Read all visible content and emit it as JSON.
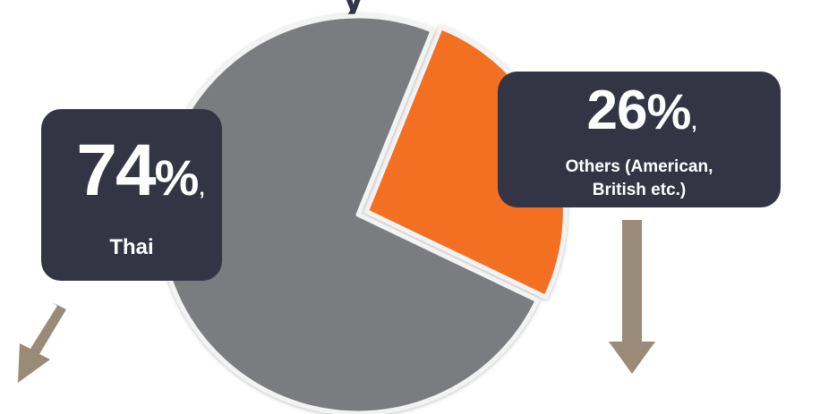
{
  "title_fragment": "y",
  "chart_data": {
    "type": "pie",
    "slices": [
      {
        "label": "Thai",
        "value": 74,
        "display": "74",
        "color": "#7a7b7f"
      },
      {
        "label": "Others (American, British etc.)",
        "value": 26,
        "display": "26",
        "color": "#f37021",
        "exploded": true
      }
    ]
  },
  "callouts": {
    "thai": {
      "value": "74",
      "percent": "%",
      "comma": ",",
      "label": "Thai"
    },
    "others": {
      "value": "26",
      "percent": "%",
      "comma": ",",
      "label_line1": "Others (American,",
      "label_line2": "British etc.)"
    }
  },
  "colors": {
    "callout_bg": "#333545",
    "arrow": "#9a8a78",
    "thai": "#7a7b7f",
    "others": "#f37021"
  }
}
